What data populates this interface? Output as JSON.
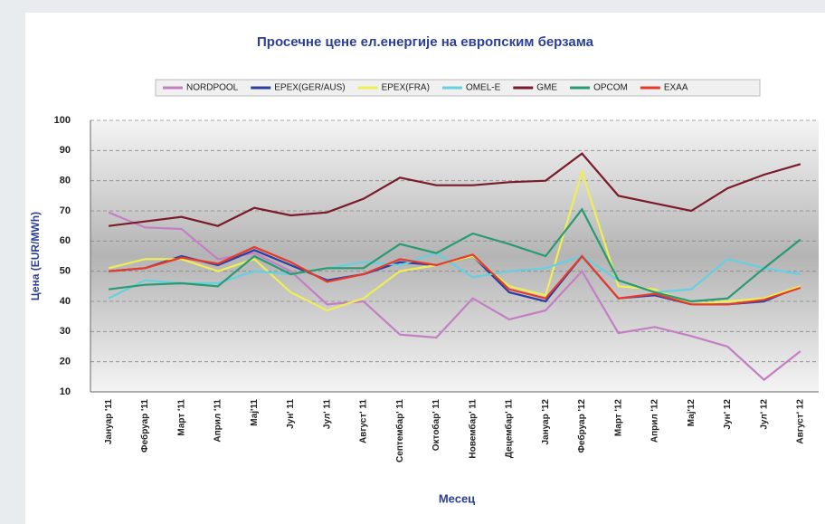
{
  "chart_data": {
    "type": "line",
    "title": "Просечне цене ел.енергије на европским берзама",
    "x_label": "Месец",
    "y_label": "Цена (EUR/MWh)",
    "categories": [
      "Јануар '11",
      "Фебруар '11",
      "Март '11",
      "Април '11",
      "Мај'11",
      "Јун' 11",
      "Јул' 11",
      "Август' 11",
      "Септембар' 11",
      "Октобар' 11",
      "Новембар' 11",
      "Децембар' 11",
      "Јануар '12",
      "Фебруар '12",
      "Март '12",
      "Април '12",
      "Мај'12",
      "Јун' 12",
      "Јул' 12",
      "Август' 12"
    ],
    "series": [
      {
        "name": "NORDPOOL",
        "color": "#c47fc4",
        "values": [
          69.5,
          64.5,
          64,
          54,
          56,
          50,
          39,
          40,
          29,
          28,
          41,
          34,
          37,
          50,
          29.5,
          31.5,
          28.5,
          25,
          14,
          23.5
        ]
      },
      {
        "name": "EPEX(GER/AUS)",
        "color": "#2b3fa3",
        "values": [
          50,
          51,
          55,
          52,
          57,
          52,
          47,
          49,
          53,
          52,
          55,
          43,
          40,
          55,
          41,
          42,
          39,
          39,
          40,
          45
        ]
      },
      {
        "name": "EPEX(FRA)",
        "color": "#eeee55",
        "values": [
          51,
          54,
          54,
          50,
          54,
          43,
          37,
          41,
          50,
          52,
          55,
          45,
          42,
          83,
          45,
          44,
          39,
          40,
          41,
          45
        ]
      },
      {
        "name": "OMEL-E",
        "color": "#66d0e0",
        "values": [
          41,
          47,
          46,
          46,
          50,
          49,
          51,
          53,
          52,
          56,
          48,
          50,
          51,
          55,
          47,
          43,
          44,
          54,
          51,
          49
        ]
      },
      {
        "name": "GME",
        "color": "#7a1a2a",
        "values": [
          65,
          66.5,
          68,
          65,
          71,
          68.5,
          69.5,
          74,
          81,
          78.5,
          78.5,
          79.5,
          80,
          89,
          75,
          72.5,
          70,
          77.5,
          82,
          85.5
        ]
      },
      {
        "name": "OPCOM",
        "color": "#2a9a70",
        "values": [
          44,
          45.5,
          46,
          45,
          55,
          49,
          51,
          51,
          59,
          56,
          62.5,
          59,
          55,
          70.5,
          47,
          43,
          40,
          41,
          51,
          60.5
        ]
      },
      {
        "name": "EXAA",
        "color": "#e83a2a",
        "values": [
          50,
          51,
          54.5,
          52.5,
          58,
          53,
          46.5,
          49,
          54,
          52,
          55.5,
          44,
          41,
          55,
          41,
          42.5,
          39,
          39,
          40.5,
          44.5
        ]
      }
    ],
    "ylim": [
      10,
      100
    ],
    "yticks": [
      10,
      20,
      30,
      40,
      50,
      60,
      70,
      80,
      90,
      100
    ],
    "grid": true,
    "legend": "top"
  }
}
